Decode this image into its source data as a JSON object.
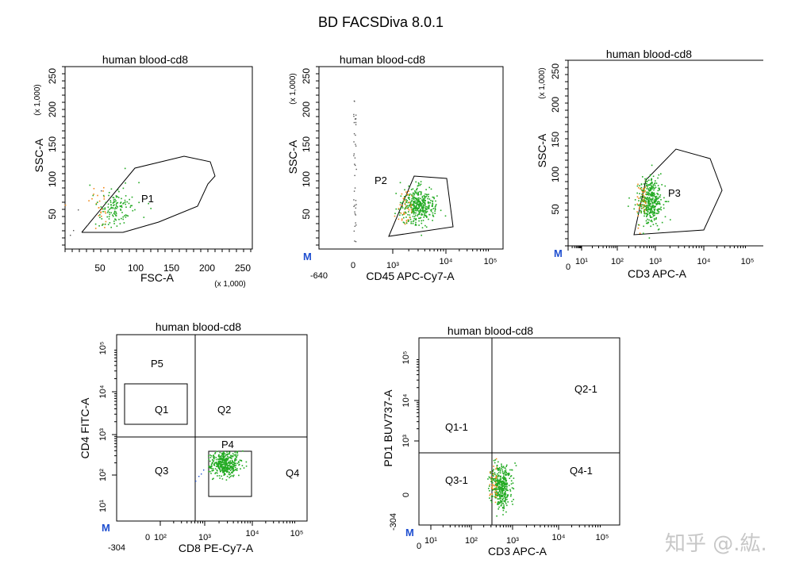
{
  "title": "BD FACSDiva 8.0.1",
  "watermark": "知乎 @.紘.",
  "colors": {
    "green": "#22aa22",
    "orange": "#f08a1c",
    "gray": "#555555",
    "blue": "#1f4fd0",
    "axis": "#000000"
  },
  "chart_data": [
    {
      "type": "scatter",
      "title": "human blood-cd8",
      "xlabel": "FSC-A",
      "ylabel": "SSC-A",
      "x_multiplier": "(x 1,000)",
      "y_multiplier": "(x 1,000)",
      "xlim": [
        0,
        262
      ],
      "ylim": [
        0,
        262
      ],
      "x_ticks": [
        "50",
        "100",
        "150",
        "200",
        "250"
      ],
      "y_ticks": [
        "50",
        "100",
        "150",
        "200",
        "250"
      ],
      "gates": [
        {
          "name": "P1"
        }
      ],
      "series": [
        {
          "color": "green",
          "center": [
            70,
            60
          ],
          "count": 120
        }
      ]
    },
    {
      "type": "scatter",
      "title": "human blood-cd8",
      "xlabel": "CD45 APC-Cy7-A",
      "ylabel": "SSC-A",
      "y_multiplier": "(x 1,000)",
      "x_scale": "biexponential",
      "x_ticks": [
        "-640",
        "0",
        "10³",
        "10⁴",
        "10⁵"
      ],
      "y_ticks": [
        "50",
        "100",
        "150",
        "200",
        "250"
      ],
      "ylim": [
        0,
        262
      ],
      "gates": [
        {
          "name": "P2"
        }
      ],
      "series": [
        {
          "color": "green",
          "center": [
            "2x10³",
            60
          ],
          "count": 350
        }
      ]
    },
    {
      "type": "scatter",
      "title": "human blood-cd8",
      "xlabel": "CD3 APC-A",
      "ylabel": "SSC-A",
      "y_multiplier": "(x 1,000)",
      "x_scale": "log",
      "x_ticks": [
        "0",
        "10¹",
        "10²",
        "10³",
        "10⁴",
        "10⁵"
      ],
      "y_ticks": [
        "50",
        "100",
        "150",
        "200",
        "250"
      ],
      "ylim": [
        0,
        262
      ],
      "gates": [
        {
          "name": "P3"
        }
      ],
      "series": [
        {
          "color": "green",
          "center": [
            "5x10²",
            60
          ],
          "count": 350
        }
      ]
    },
    {
      "type": "scatter",
      "title": "human blood-cd8",
      "xlabel": "CD8 PE-Cy7-A",
      "ylabel": "CD4 FITC-A",
      "x_scale": "biexponential",
      "y_scale": "log",
      "x_ticks": [
        "-304",
        "0",
        "10²",
        "10³",
        "10⁴",
        "10⁵"
      ],
      "y_ticks": [
        "10¹",
        "10²",
        "10³",
        "10⁴",
        "10⁵"
      ],
      "gates": [
        {
          "name": "P5"
        },
        {
          "name": "Q1"
        },
        {
          "name": "Q2"
        },
        {
          "name": "Q3"
        },
        {
          "name": "Q4"
        },
        {
          "name": "P4"
        }
      ],
      "series": [
        {
          "color": "green",
          "center": [
            "2.5x10³",
            "10²"
          ],
          "count": 350
        }
      ]
    },
    {
      "type": "scatter",
      "title": "human blood-cd8",
      "xlabel": "CD3 APC-A",
      "ylabel": "PD1 BUV737-A",
      "x_scale": "log",
      "y_scale": "biexponential",
      "x_ticks": [
        "0",
        "10¹",
        "10²",
        "10³",
        "10⁴",
        "10⁵"
      ],
      "y_ticks": [
        "-304",
        "0",
        "10³",
        "10⁴",
        "10⁵"
      ],
      "gates": [
        {
          "name": "Q1-1"
        },
        {
          "name": "Q2-1"
        },
        {
          "name": "Q3-1"
        },
        {
          "name": "Q4-1"
        }
      ],
      "series": [
        {
          "color": "green",
          "center": [
            "5x10²",
            "0"
          ],
          "count": 350
        }
      ]
    }
  ],
  "m_marker": "M"
}
